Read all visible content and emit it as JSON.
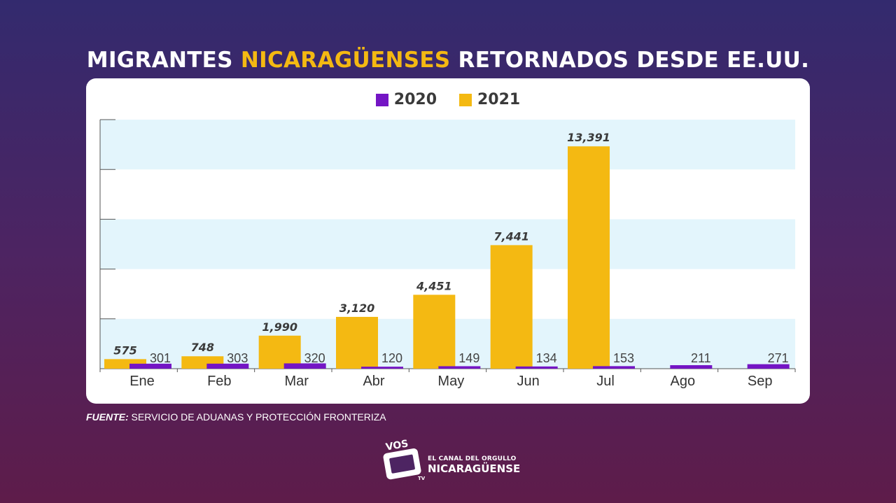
{
  "title": {
    "part1": "MIGRANTES ",
    "highlight": "NICARAGÜENSES",
    "part2": " RETORNADOS DESDE EE.UU."
  },
  "colors": {
    "series_2020": "#7415c4",
    "series_2021": "#f4b912",
    "band": "#e3f5fc",
    "title_highlight": "#f4b912"
  },
  "chart_data": {
    "type": "bar",
    "title": "MIGRANTES NICARAGÜENSES RETORNADOS DESDE EE.UU.",
    "categories": [
      "Ene",
      "Feb",
      "Mar",
      "Abr",
      "May",
      "Jun",
      "Jul",
      "Ago",
      "Sep"
    ],
    "series": [
      {
        "name": "2021",
        "values": [
          575,
          748,
          1990,
          3120,
          4451,
          7441,
          13391,
          null,
          null
        ],
        "labels": [
          "575",
          "748",
          "1,990",
          "3,120",
          "4,451",
          "7,441",
          "13,391",
          "",
          ""
        ]
      },
      {
        "name": "2020",
        "values": [
          301,
          303,
          320,
          120,
          149,
          134,
          153,
          211,
          271
        ],
        "labels": [
          "301",
          "303",
          "320",
          "120",
          "149",
          "134",
          "153",
          "211",
          "271"
        ]
      }
    ],
    "ylim": [
      0,
      15000
    ],
    "grid": "alternating horizontal bands",
    "legend": "top-center"
  },
  "legend": [
    {
      "label": "2020",
      "color": "#7415c4"
    },
    {
      "label": "2021",
      "color": "#f4b912"
    }
  ],
  "source": {
    "label": "FUENTE:",
    "text": " SERVICIO DE ADUANAS Y PROTECCIÓN FRONTERIZA"
  },
  "logo": {
    "badge": "VOS",
    "tv": "TV",
    "line1": "EL CANAL DEL ORGULLO",
    "line2": "NICARAGÜENSE"
  }
}
